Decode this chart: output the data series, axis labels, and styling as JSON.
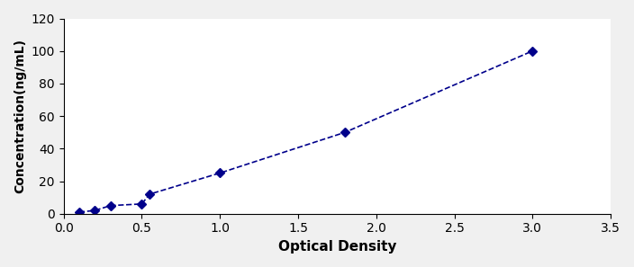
{
  "x": [
    0.1,
    0.2,
    0.3,
    0.5,
    0.55,
    1.0,
    1.8,
    3.0
  ],
  "y": [
    1.0,
    2.0,
    5.0,
    6.0,
    12.0,
    25.0,
    50.0,
    100.0
  ],
  "line_color": "#00008B",
  "marker_color": "#00008B",
  "marker": "D",
  "marker_size": 5,
  "line_style": "--",
  "line_width": 1.2,
  "xlabel": "Optical Density",
  "ylabel": "Concentration(ng/mL)",
  "xlim": [
    0,
    3.5
  ],
  "ylim": [
    0,
    120
  ],
  "xticks": [
    0,
    0.5,
    1.0,
    1.5,
    2.0,
    2.5,
    3.0,
    3.5
  ],
  "yticks": [
    0,
    20,
    40,
    60,
    80,
    100,
    120
  ],
  "xlabel_fontsize": 11,
  "ylabel_fontsize": 10,
  "tick_fontsize": 10,
  "background_color": "#ffffff",
  "figure_background": "#f0f0f0"
}
